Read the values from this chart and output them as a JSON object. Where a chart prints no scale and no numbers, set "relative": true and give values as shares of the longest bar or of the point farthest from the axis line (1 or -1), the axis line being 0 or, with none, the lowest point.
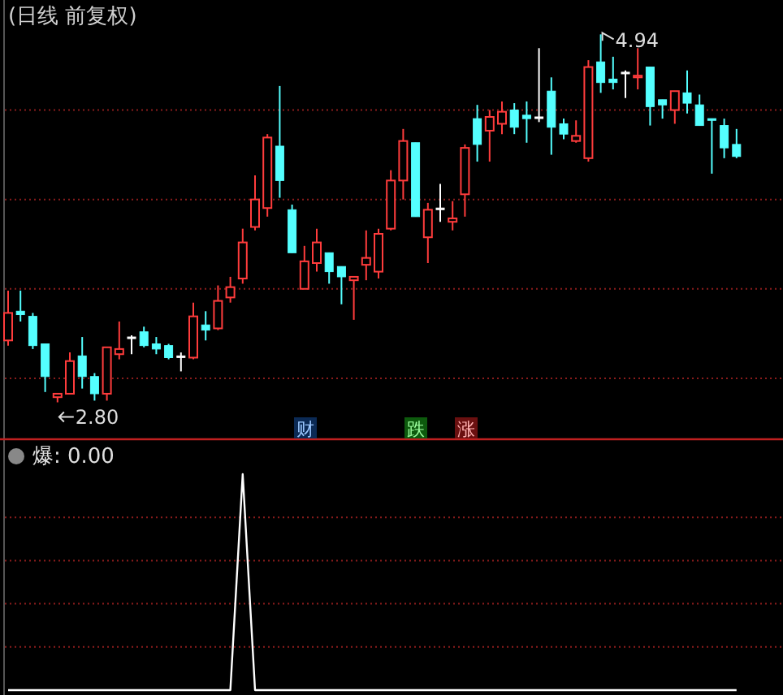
{
  "chart_data": [
    {
      "type": "candlestick",
      "title": "(日线 前复权)",
      "categories": [
        null,
        null,
        null,
        null,
        null,
        null,
        null,
        null,
        null,
        null,
        null,
        null,
        null,
        null,
        null,
        null,
        null,
        null,
        null,
        null,
        null,
        null,
        null,
        null,
        null,
        null,
        null,
        null,
        null,
        null,
        null,
        null,
        null,
        null,
        null,
        null,
        null,
        null,
        null,
        null,
        null,
        null,
        null,
        null,
        null,
        null,
        null,
        null,
        null,
        null,
        null,
        null,
        null,
        null,
        null,
        null,
        null,
        null,
        null,
        null
      ],
      "ohlc": [
        [
          3.16,
          3.45,
          3.13,
          3.32
        ],
        [
          3.33,
          3.45,
          3.27,
          3.31
        ],
        [
          3.3,
          3.32,
          3.11,
          3.13
        ],
        [
          3.14,
          3.14,
          2.86,
          2.95
        ],
        [
          2.83,
          2.85,
          2.8,
          2.85
        ],
        [
          2.85,
          3.09,
          2.85,
          3.04
        ],
        [
          3.07,
          3.18,
          2.88,
          2.95
        ],
        [
          2.95,
          2.97,
          2.81,
          2.85
        ],
        [
          2.85,
          3.12,
          2.81,
          3.12
        ],
        [
          3.08,
          3.27,
          3.05,
          3.11
        ],
        [
          3.18,
          3.19,
          3.08,
          3.18
        ],
        [
          3.21,
          3.24,
          3.12,
          3.13
        ],
        [
          3.14,
          3.18,
          3.08,
          3.11
        ],
        [
          3.13,
          3.14,
          3.05,
          3.06
        ],
        [
          3.07,
          3.09,
          2.98,
          3.07
        ],
        [
          3.06,
          3.38,
          3.05,
          3.3
        ],
        [
          3.25,
          3.33,
          3.16,
          3.22
        ],
        [
          3.23,
          3.48,
          3.22,
          3.39
        ],
        [
          3.41,
          3.53,
          3.38,
          3.47
        ],
        [
          3.52,
          3.81,
          3.49,
          3.73
        ],
        [
          3.82,
          4.12,
          3.8,
          3.98
        ],
        [
          3.93,
          4.36,
          3.88,
          4.34
        ],
        [
          4.29,
          4.64,
          3.99,
          4.09
        ],
        [
          3.92,
          3.95,
          3.67,
          3.67
        ],
        [
          3.46,
          3.71,
          3.46,
          3.62
        ],
        [
          3.61,
          3.81,
          3.56,
          3.73
        ],
        [
          3.67,
          3.67,
          3.49,
          3.56
        ],
        [
          3.59,
          3.59,
          3.37,
          3.53
        ],
        [
          3.51,
          3.53,
          3.28,
          3.53
        ],
        [
          3.6,
          3.8,
          3.51,
          3.64
        ],
        [
          3.56,
          3.81,
          3.52,
          3.78
        ],
        [
          3.81,
          4.15,
          3.8,
          4.09
        ],
        [
          4.09,
          4.39,
          3.98,
          4.32
        ],
        [
          4.31,
          4.31,
          3.88,
          3.88
        ],
        [
          3.76,
          3.96,
          3.61,
          3.92
        ],
        [
          3.93,
          4.07,
          3.85,
          3.93
        ],
        [
          3.85,
          3.97,
          3.8,
          3.87
        ],
        [
          4.01,
          4.3,
          3.88,
          4.28
        ],
        [
          4.45,
          4.53,
          4.2,
          4.3
        ],
        [
          4.38,
          4.5,
          4.2,
          4.46
        ],
        [
          4.42,
          4.55,
          4.36,
          4.49
        ],
        [
          4.5,
          4.54,
          4.36,
          4.4
        ],
        [
          4.47,
          4.55,
          4.31,
          4.45
        ],
        [
          4.46,
          4.86,
          4.43,
          4.46
        ],
        [
          4.61,
          4.69,
          4.24,
          4.4
        ],
        [
          4.42,
          4.45,
          4.33,
          4.36
        ],
        [
          4.32,
          4.44,
          4.31,
          4.35
        ],
        [
          4.22,
          4.79,
          4.2,
          4.75
        ],
        [
          4.78,
          4.94,
          4.6,
          4.66
        ],
        [
          4.68,
          4.81,
          4.62,
          4.66
        ],
        [
          4.72,
          4.73,
          4.57,
          4.72
        ],
        [
          4.69,
          4.86,
          4.62,
          4.7
        ],
        [
          4.75,
          4.75,
          4.41,
          4.52
        ],
        [
          4.56,
          4.56,
          4.45,
          4.53
        ],
        [
          4.5,
          4.61,
          4.42,
          4.61
        ],
        [
          4.6,
          4.73,
          4.48,
          4.54
        ],
        [
          4.53,
          4.59,
          4.41,
          4.41
        ],
        [
          4.45,
          4.45,
          4.13,
          4.44
        ],
        [
          4.41,
          4.45,
          4.22,
          4.28
        ],
        [
          4.3,
          4.39,
          4.22,
          4.23
        ]
      ],
      "colors": [
        "#ff3c3c",
        "#54ffff",
        "#54ffff",
        "#54ffff",
        "#ff3c3c",
        "#ff3c3c",
        "#54ffff",
        "#54ffff",
        "#ff3c3c",
        "#ff3c3c",
        "#ffffff",
        "#54ffff",
        "#54ffff",
        "#54ffff",
        "#ffffff",
        "#ff3c3c",
        "#54ffff",
        "#ff3c3c",
        "#ff3c3c",
        "#ff3c3c",
        "#ff3c3c",
        "#ff3c3c",
        "#54ffff",
        "#54ffff",
        "#ff3c3c",
        "#ff3c3c",
        "#54ffff",
        "#54ffff",
        "#ff3c3c",
        "#ff3c3c",
        "#ff3c3c",
        "#ff3c3c",
        "#ff3c3c",
        "#54ffff",
        "#ff3c3c",
        "#ffffff",
        "#ff3c3c",
        "#ff3c3c",
        "#54ffff",
        "#ff3c3c",
        "#ff3c3c",
        "#54ffff",
        "#54ffff",
        "#ffffff",
        "#54ffff",
        "#54ffff",
        "#ff3c3c",
        "#ff3c3c",
        "#54ffff",
        "#54ffff",
        "#ffffff",
        "#ff3c3c",
        "#54ffff",
        "#54ffff",
        "#ff3c3c",
        "#54ffff",
        "#54ffff",
        "#54ffff",
        "#54ffff",
        "#54ffff"
      ],
      "ylim": [
        2.59,
        5.14
      ],
      "yticks": [
        {
          "value": 2.94,
          "label": null
        },
        {
          "value": 3.46,
          "label": null
        },
        {
          "value": 3.98,
          "label": null
        },
        {
          "value": 4.5,
          "label": null
        }
      ],
      "grid": "y",
      "annotations": [
        "4.94",
        "2.80",
        "财",
        "跌",
        "涨"
      ]
    },
    {
      "type": "line",
      "title": "爆: 0.00",
      "relative": true,
      "ref_lines": [
        {
          "axis": "y",
          "value": 0.8,
          "color": "#8a1c1c",
          "line_style": "dotted"
        },
        {
          "axis": "y",
          "value": 0.6,
          "color": "#8a1c1c",
          "line_style": "dotted"
        },
        {
          "axis": "y",
          "value": 0.4,
          "color": "#8a1c1c",
          "line_style": "dotted"
        },
        {
          "axis": "y",
          "value": 0.2,
          "color": "#8a1c1c",
          "line_style": "dotted"
        }
      ],
      "categories": [
        null,
        null,
        null,
        null,
        null,
        null,
        null,
        null,
        null,
        null,
        null,
        null,
        null,
        null,
        null,
        null,
        null,
        null,
        null,
        null,
        null,
        null,
        null,
        null,
        null,
        null,
        null,
        null,
        null,
        null,
        null,
        null,
        null,
        null,
        null,
        null,
        null,
        null,
        null,
        null,
        null,
        null,
        null,
        null,
        null,
        null,
        null,
        null,
        null,
        null,
        null,
        null,
        null,
        null,
        null,
        null,
        null,
        null,
        null,
        null
      ],
      "series": [
        {
          "color": "#ffffff",
          "values": [
            0,
            0,
            0,
            0,
            0,
            0,
            0,
            0,
            0,
            0,
            0,
            0,
            0,
            0,
            0,
            0,
            0,
            0,
            0,
            1,
            0,
            0,
            0,
            0,
            0,
            0,
            0,
            0,
            0,
            0,
            0,
            0,
            0,
            0,
            0,
            0,
            0,
            0,
            0,
            0,
            0,
            0,
            0,
            0,
            0,
            0,
            0,
            0,
            0,
            0,
            0,
            0,
            0,
            0,
            0,
            0,
            0,
            0,
            0,
            0
          ]
        }
      ]
    }
  ]
}
